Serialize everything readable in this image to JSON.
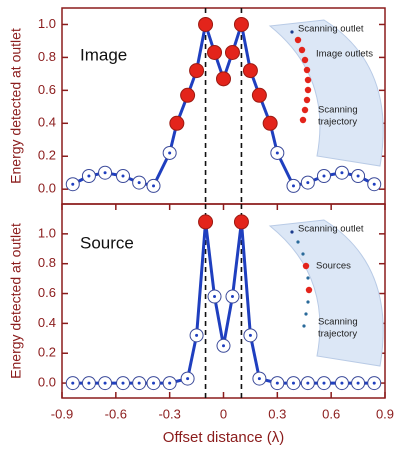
{
  "chart_data": [
    {
      "type": "line",
      "annotation": "Image",
      "ylabel": "Energy detected at outlet",
      "inset_labels": {
        "outlet": "Scanning outlet",
        "points": "Image outlets",
        "trajectory": [
          "Scanning",
          "trajectory"
        ]
      },
      "x": [
        -0.84,
        -0.75,
        -0.66,
        -0.56,
        -0.47,
        -0.39,
        -0.3,
        -0.26,
        -0.2,
        -0.15,
        -0.1,
        -0.05,
        0,
        0.05,
        0.1,
        0.15,
        0.2,
        0.26,
        0.3,
        0.39,
        0.47,
        0.56,
        0.66,
        0.75,
        0.84
      ],
      "values": [
        0.03,
        0.08,
        0.1,
        0.08,
        0.04,
        0.02,
        0.22,
        0.4,
        0.57,
        0.72,
        1.0,
        0.83,
        0.67,
        0.83,
        1.0,
        0.72,
        0.57,
        0.4,
        0.22,
        0.02,
        0.04,
        0.08,
        0.1,
        0.08,
        0.03
      ],
      "color": "#1f3fbf",
      "marker_colors": [
        "#ffffff",
        "#ffffff",
        "#ffffff",
        "#ffffff",
        "#ffffff",
        "#ffffff",
        "#ffffff",
        "#e3241b",
        "#e3241b",
        "#e3241b",
        "#e3241b",
        "#e3241b",
        "#e3241b",
        "#e3241b",
        "#e3241b",
        "#e3241b",
        "#e3241b",
        "#e3241b",
        "#ffffff",
        "#ffffff",
        "#ffffff",
        "#ffffff",
        "#ffffff",
        "#ffffff",
        "#ffffff"
      ],
      "vlines": [
        -0.1,
        0.1
      ],
      "xlim": [
        -0.9,
        0.9
      ],
      "ylim": [
        -0.09,
        1.1
      ],
      "yticks": [
        {
          "value": 0,
          "label": "0.0"
        },
        {
          "value": 0.2,
          "label": "0.2"
        },
        {
          "value": 0.4,
          "label": "0.4"
        },
        {
          "value": 0.6,
          "label": "0.6"
        },
        {
          "value": 0.8,
          "label": "0.8"
        },
        {
          "value": 1.0,
          "label": "1.0"
        }
      ]
    },
    {
      "type": "line",
      "annotation": "Source",
      "ylabel": "Energy detected at outlet",
      "xlabel": "Offset distance (λ)",
      "inset_labels": {
        "outlet": "Scanning outlet",
        "points": "Sources",
        "trajectory": [
          "Scanning",
          "trajectory"
        ]
      },
      "x": [
        -0.84,
        -0.75,
        -0.66,
        -0.56,
        -0.47,
        -0.39,
        -0.3,
        -0.2,
        -0.15,
        -0.1,
        -0.05,
        0,
        0.05,
        0.1,
        0.15,
        0.2,
        0.3,
        0.39,
        0.47,
        0.56,
        0.66,
        0.75,
        0.84
      ],
      "values": [
        0,
        0,
        0,
        0,
        0,
        0,
        0,
        0.03,
        0.32,
        1.08,
        0.58,
        0.25,
        0.58,
        1.08,
        0.32,
        0.03,
        0,
        0,
        0,
        0,
        0,
        0,
        0
      ],
      "color": "#1f3fbf",
      "marker_colors": [
        "#ffffff",
        "#ffffff",
        "#ffffff",
        "#ffffff",
        "#ffffff",
        "#ffffff",
        "#ffffff",
        "#ffffff",
        "#ffffff",
        "#e3241b",
        "#ffffff",
        "#ffffff",
        "#ffffff",
        "#e3241b",
        "#ffffff",
        "#ffffff",
        "#ffffff",
        "#ffffff",
        "#ffffff",
        "#ffffff",
        "#ffffff",
        "#ffffff",
        "#ffffff"
      ],
      "vlines": [
        -0.1,
        0.1
      ],
      "xlim": [
        -0.9,
        0.9
      ],
      "ylim": [
        -0.1,
        1.2
      ],
      "xticks": [
        -0.9,
        -0.6,
        -0.3,
        0,
        0.3,
        0.6,
        0.9
      ],
      "yticks": [
        {
          "value": 0,
          "label": "0.0"
        },
        {
          "value": 0.2,
          "label": "0.2"
        },
        {
          "value": 0.4,
          "label": "0.4"
        },
        {
          "value": 0.6,
          "label": "0.6"
        },
        {
          "value": 0.8,
          "label": "0.8"
        },
        {
          "value": 1.0,
          "label": "1.0"
        }
      ]
    }
  ]
}
